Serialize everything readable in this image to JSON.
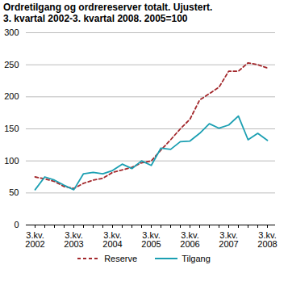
{
  "chart_data": {
    "type": "line",
    "title": "Ordretilgang og ordrereserver totalt. Ujustert.",
    "subtitle": "3. kvartal 2002-3. kvartal 2008. 2005=100",
    "categories": [
      "3.kv.\n2002",
      null,
      null,
      null,
      "3.kv.\n2003",
      null,
      null,
      null,
      "3.kv.\n2004",
      null,
      null,
      null,
      "3.kv.\n2005",
      null,
      null,
      null,
      "3.kv.\n2006",
      null,
      null,
      null,
      "3.kv.\n2007",
      null,
      null,
      null,
      "3.kv.\n2008"
    ],
    "series": [
      {
        "name": "Reserve",
        "color": "#a3282c",
        "line_style": "dashed",
        "values": [
          75,
          72,
          68,
          60,
          57,
          65,
          70,
          73,
          82,
          86,
          90,
          97,
          100,
          117,
          133,
          150,
          165,
          195,
          205,
          215,
          240,
          240,
          253,
          250,
          245
        ]
      },
      {
        "name": "Tilgang",
        "color": "#1b9fb2",
        "line_style": "solid",
        "values": [
          55,
          75,
          70,
          62,
          55,
          80,
          82,
          80,
          85,
          95,
          88,
          100,
          93,
          120,
          118,
          130,
          131,
          143,
          158,
          151,
          156,
          170,
          133,
          143,
          132
        ]
      }
    ],
    "ylim": [
      0,
      300
    ],
    "yticks": [
      0,
      50,
      100,
      150,
      200,
      250,
      300
    ],
    "grid": true,
    "legend": "bottom"
  }
}
